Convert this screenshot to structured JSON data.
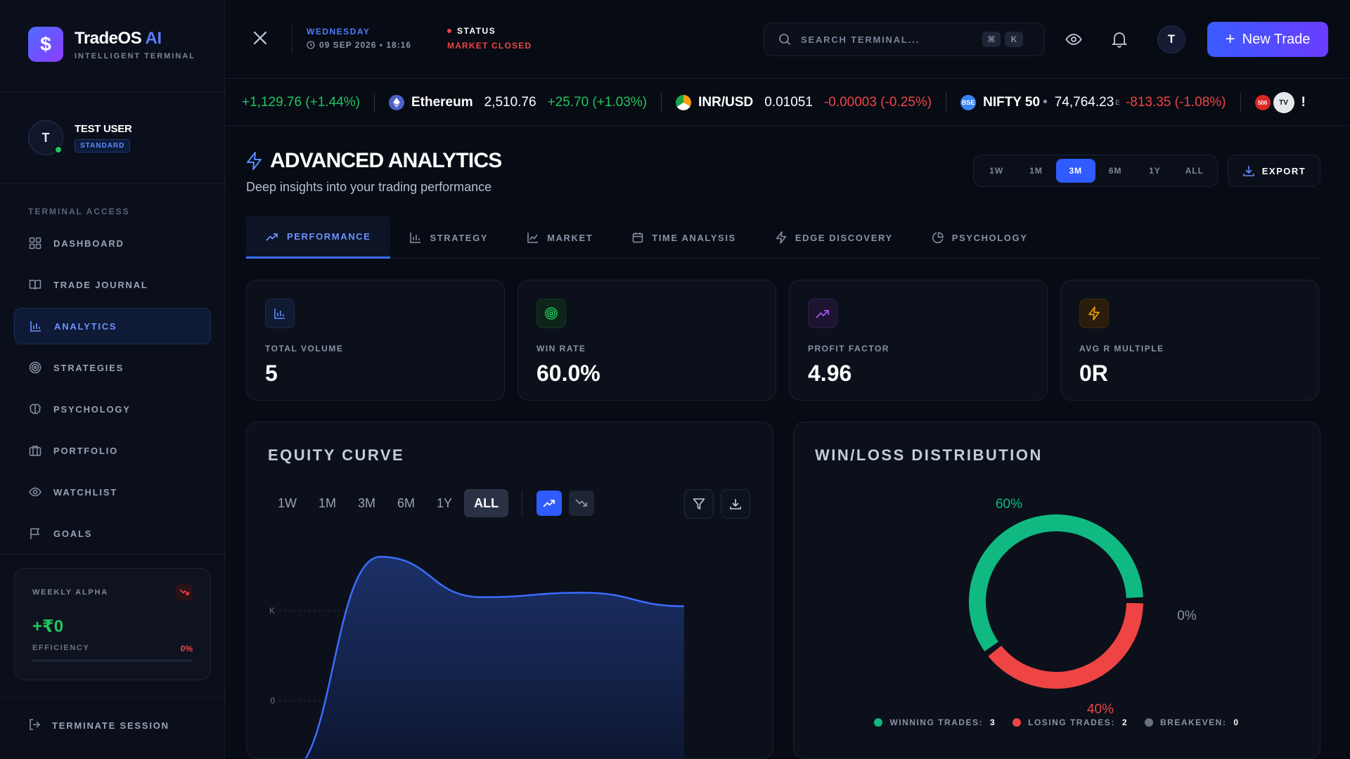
{
  "brand": {
    "name": "TradeOS",
    "name_accent": "AI",
    "subtitle": "INTELLIGENT TERMINAL",
    "logo_symbol": "$"
  },
  "user": {
    "initial": "T",
    "name": "TEST USER",
    "plan": "STANDARD"
  },
  "nav": {
    "heading": "TERMINAL ACCESS",
    "items": [
      {
        "label": "DASHBOARD",
        "icon": "grid-icon"
      },
      {
        "label": "TRADE JOURNAL",
        "icon": "book-icon"
      },
      {
        "label": "ANALYTICS",
        "icon": "bar-chart-icon",
        "active": true
      },
      {
        "label": "STRATEGIES",
        "icon": "target-icon"
      },
      {
        "label": "PSYCHOLOGY",
        "icon": "brain-icon"
      },
      {
        "label": "PORTFOLIO",
        "icon": "briefcase-icon"
      },
      {
        "label": "WATCHLIST",
        "icon": "eye-icon"
      },
      {
        "label": "GOALS",
        "icon": "flag-icon"
      }
    ]
  },
  "weekly_alpha": {
    "label": "WEEKLY ALPHA",
    "value": "+₹0",
    "efficiency_label": "EFFICIENCY",
    "efficiency_value": "0%"
  },
  "logout_label": "TERMINATE SESSION",
  "topbar": {
    "day": "WEDNESDAY",
    "datetime": "09 SEP 2026 • 18:16",
    "status_label": "STATUS",
    "status_value": "MARKET CLOSED",
    "search_placeholder": "SEARCH TERMINAL...",
    "kbd_1": "⌘",
    "kbd_2": "K",
    "avatar_initial": "T",
    "new_trade_label": "New Trade"
  },
  "ticker": [
    {
      "change": "+1,129.76 (+1.44%)",
      "dir": "up"
    },
    {
      "name": "Ethereum",
      "price": "2,510.76",
      "change": "+25.70 (+1.03%)",
      "dir": "up",
      "icon": "ethereum-icon",
      "icon_color": "#6b7bd6"
    },
    {
      "name": "INR/USD",
      "price": "0.01051",
      "change": "-0.00003 (-0.25%)",
      "dir": "down",
      "icon": "flag-in-icon",
      "icon_color": "#f59e0b"
    },
    {
      "name": "NIFTY 50",
      "sep": "•",
      "price": "74,764.23",
      "sup": "E",
      "change": "-813.35 (-1.08%)",
      "dir": "down",
      "icon": "bse-icon",
      "icon_color": "#3b82f6",
      "icon_text": "BSE"
    }
  ],
  "ticker_end": {
    "badge_1": "500",
    "badge_2": "TV",
    "tail": "!"
  },
  "page": {
    "title": "ADVANCED ANALYTICS",
    "subtitle": "Deep insights into your trading performance",
    "ranges": [
      "1W",
      "1M",
      "3M",
      "6M",
      "1Y",
      "ALL"
    ],
    "active_range": "3M",
    "export_label": "EXPORT"
  },
  "tabs": [
    {
      "label": "PERFORMANCE",
      "icon": "trending-up-icon",
      "active": true
    },
    {
      "label": "STRATEGY",
      "icon": "bar-chart-icon"
    },
    {
      "label": "MARKET",
      "icon": "line-chart-icon"
    },
    {
      "label": "TIME ANALYSIS",
      "icon": "calendar-icon"
    },
    {
      "label": "EDGE DISCOVERY",
      "icon": "zap-icon"
    },
    {
      "label": "PSYCHOLOGY",
      "icon": "pie-icon"
    }
  ],
  "kpis": [
    {
      "label": "TOTAL VOLUME",
      "value": "5",
      "icon": "bar-chart-icon",
      "color": "#5b8cff",
      "bg": "#111a33"
    },
    {
      "label": "WIN RATE",
      "value": "60.0%",
      "icon": "target-icon",
      "color": "#22c55e",
      "bg": "#0d2418"
    },
    {
      "label": "PROFIT FACTOR",
      "value": "4.96",
      "icon": "trending-up-icon",
      "color": "#a855f7",
      "bg": "#1d1430"
    },
    {
      "label": "AVG R MULTIPLE",
      "value": "0R",
      "icon": "zap-icon",
      "color": "#f59e0b",
      "bg": "#2a1d0a"
    }
  ],
  "equity": {
    "title": "EQUITY CURVE",
    "ranges": [
      "1W",
      "1M",
      "3M",
      "6M",
      "1Y",
      "ALL"
    ],
    "active_range": "ALL",
    "y_ticks": [
      "K",
      "K",
      "0"
    ]
  },
  "winloss": {
    "title": "WIN/LOSS DISTRIBUTION",
    "win_label": "60%",
    "loss_label": "40%",
    "breakeven_label": "0%",
    "legend": [
      {
        "label": "WINNING TRADES:",
        "value": "3",
        "color": "#10b981"
      },
      {
        "label": "LOSING TRADES:",
        "value": "2",
        "color": "#ef4444"
      },
      {
        "label": "BREAKEVEN:",
        "value": "0",
        "color": "#6b7280"
      }
    ]
  },
  "chart_data": [
    {
      "type": "area",
      "title": "EQUITY CURVE",
      "x": [
        0,
        1,
        2,
        3,
        4
      ],
      "y": [
        -0.5,
        1.6,
        1.15,
        1.2,
        1.05
      ],
      "ylabel": "",
      "y_tick_labels": [
        "K",
        "K",
        "0"
      ],
      "grid": true,
      "color": "#3b6cff"
    },
    {
      "type": "pie",
      "title": "WIN/LOSS DISTRIBUTION",
      "categories": [
        "Winning Trades",
        "Losing Trades",
        "Breakeven"
      ],
      "values": [
        3,
        2,
        0
      ],
      "labels": [
        "60%",
        "40%",
        "0%"
      ],
      "colors": [
        "#10b981",
        "#ef4444",
        "#6b7280"
      ]
    }
  ]
}
